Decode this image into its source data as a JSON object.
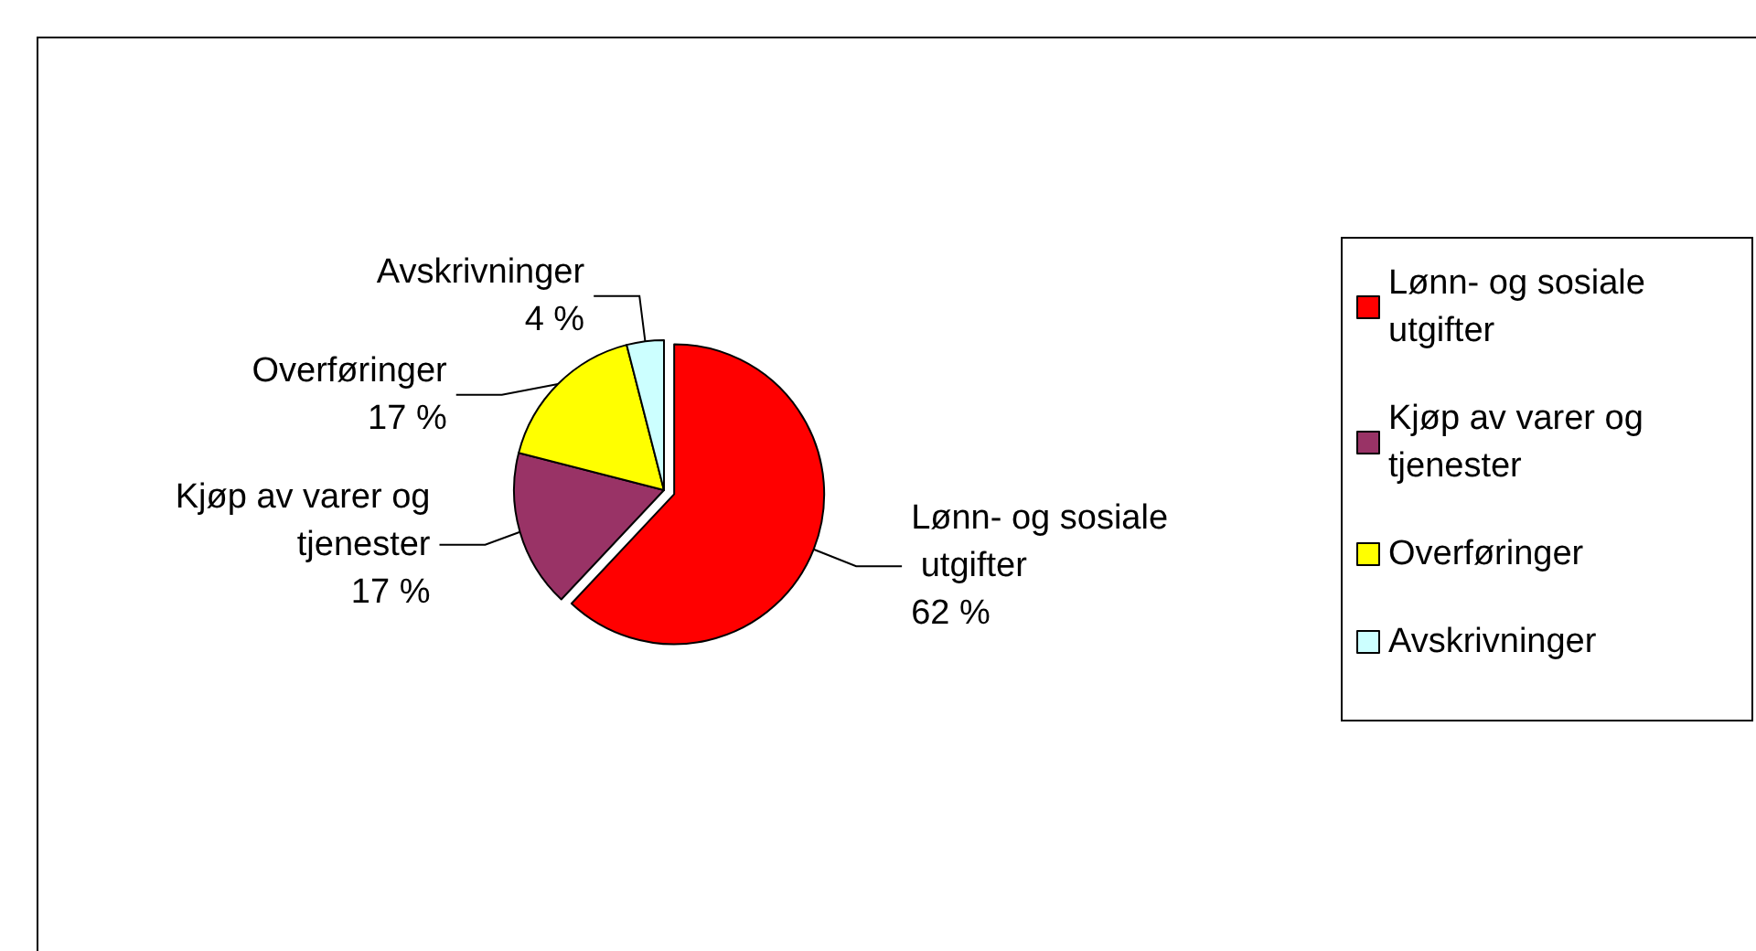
{
  "chart_data": {
    "type": "pie",
    "categories": [
      "Lønn- og sosiale utgifter",
      "Kjøp av varer og tjenester",
      "Overføringer",
      "Avskrivninger"
    ],
    "values": [
      62,
      17,
      17,
      4
    ],
    "colors": [
      "#ff0000",
      "#993366",
      "#ffff00",
      "#ccffff"
    ],
    "value_labels": [
      "62 %",
      "17 %",
      "17 %",
      "4 %"
    ],
    "legend": "right"
  }
}
